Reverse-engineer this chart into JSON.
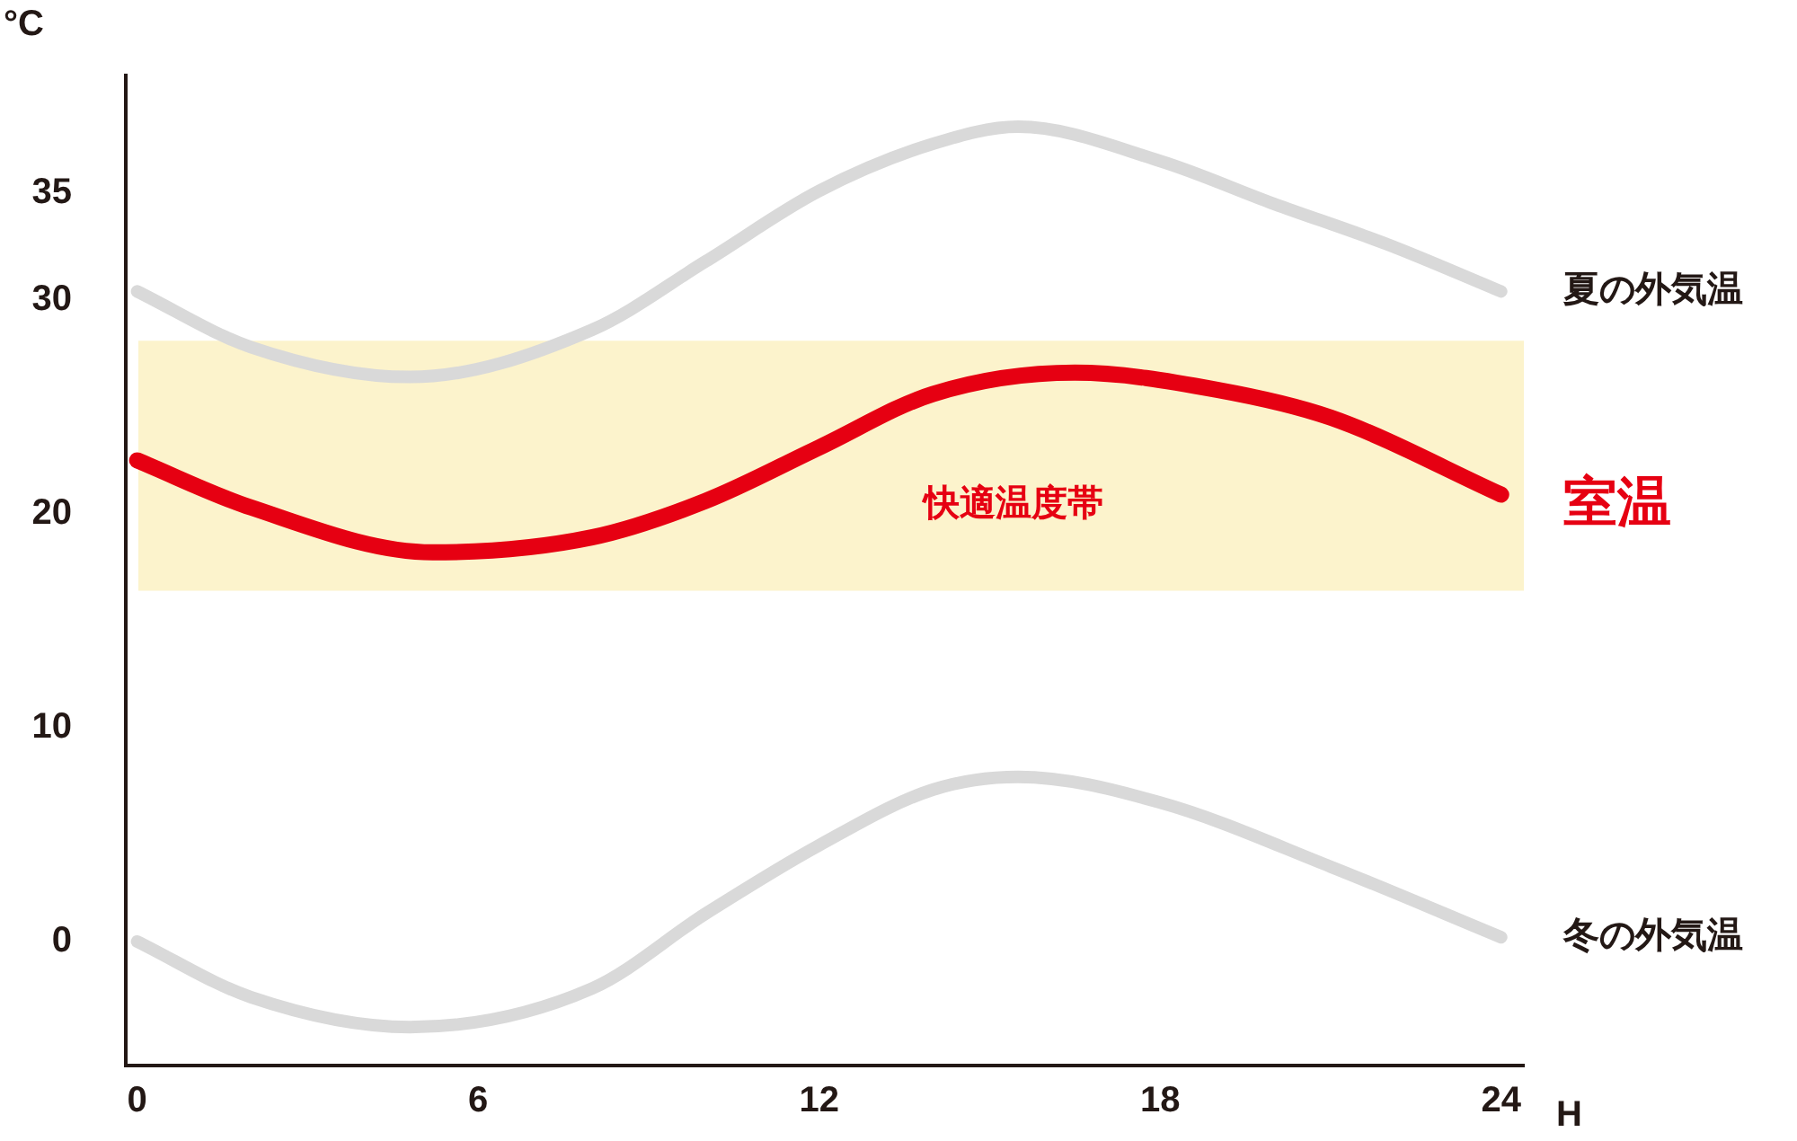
{
  "chart_data": {
    "type": "line",
    "xlabel": "H",
    "ylabel": "°C",
    "xlim": [
      -0.2,
      24.4
    ],
    "xticks": [
      0,
      6,
      12,
      18,
      24
    ],
    "ylim": [
      -5.8,
      40.5
    ],
    "yticks": [
      0,
      10,
      20,
      30,
      35
    ],
    "grid": false,
    "legend": false,
    "marker": "none",
    "line_style": "solid",
    "bands": [
      {
        "axis": "y",
        "from": 16.4,
        "to": 28.1,
        "label": "快適温度帯",
        "color": "#fcf3cc"
      }
    ],
    "series": [
      {
        "name": "夏の外気温",
        "color": "#d9d9d9",
        "x": [
          0,
          2,
          4.8,
          8,
          10,
          12,
          14,
          15.5,
          18,
          20,
          22,
          24
        ],
        "values": [
          30.4,
          27.8,
          26.4,
          28.6,
          31.8,
          35.1,
          37.3,
          38.1,
          36.5,
          34.5,
          32.6,
          30.4
        ]
      },
      {
        "name": "室温",
        "color": "#e60012",
        "x": [
          0,
          2,
          5.2,
          8,
          10,
          12,
          14,
          16.5,
          19,
          21,
          24
        ],
        "values": [
          22.5,
          20.3,
          18.2,
          18.9,
          20.6,
          23.1,
          25.6,
          26.6,
          25.8,
          24.5,
          20.9
        ]
      },
      {
        "name": "冬の外気温",
        "color": "#d9d9d9",
        "x": [
          0,
          2,
          4.8,
          8,
          10,
          12,
          14,
          15.5,
          18,
          21,
          24
        ],
        "values": [
          0,
          -2.6,
          -4.0,
          -2.2,
          1.3,
          4.5,
          7.1,
          7.7,
          6.5,
          3.5,
          0.2
        ]
      }
    ]
  }
}
